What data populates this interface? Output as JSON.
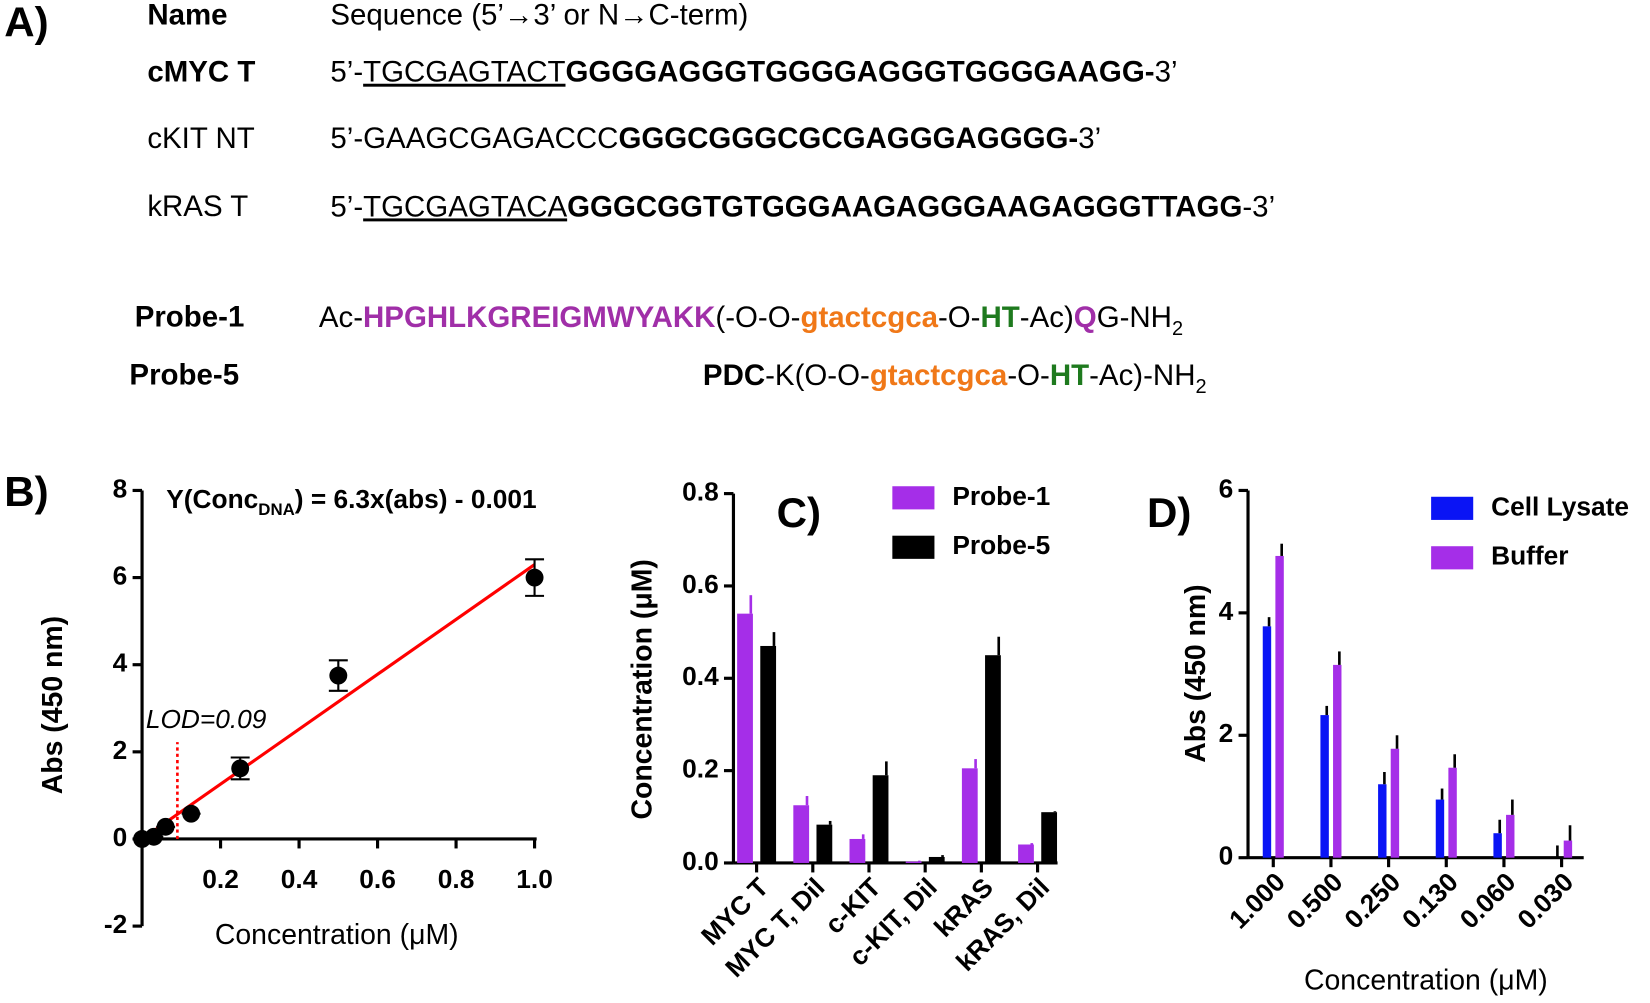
{
  "panel_a": {
    "label": "A)",
    "header": {
      "name": "Name",
      "sequence": "Sequence (5’→3’ or N→C-term)"
    },
    "rows": [
      {
        "name": "cMYC T",
        "name_bold": true,
        "segments": [
          {
            "text": "5’-",
            "style": "plain"
          },
          {
            "text": "TGCGAGTACT",
            "style": "underline"
          },
          {
            "text": "GGGGAGGGTGGGGAGGGTGGGGAAGG-",
            "style": "bold"
          },
          {
            "text": "3’",
            "style": "plain"
          }
        ]
      },
      {
        "name": "cKIT NT",
        "name_bold": false,
        "segments": [
          {
            "text": "5’-GAAGCGAGACCC",
            "style": "plain"
          },
          {
            "text": "GGGCGGGCGCGAGGGAGGGG-",
            "style": "bold"
          },
          {
            "text": "3’",
            "style": "plain"
          }
        ]
      },
      {
        "name": "kRAS T",
        "name_bold": false,
        "segments": [
          {
            "text": "5’-",
            "style": "plain"
          },
          {
            "text": "TGCGAGTACA",
            "style": "underline"
          },
          {
            "text": "GGGCGGTGTGGGAAGAGGGAAGAGGGTTAGG",
            "style": "bold"
          },
          {
            "text": "-3’",
            "style": "plain"
          }
        ]
      },
      {
        "name": "Probe-1",
        "name_bold": true,
        "segments": [
          {
            "text": "Ac-",
            "style": "plain"
          },
          {
            "text": "HPGHLKGREIGMWYAKK",
            "style": "purple"
          },
          {
            "text": "(-O-O-",
            "style": "plain"
          },
          {
            "text": "gtactcgca",
            "style": "orange"
          },
          {
            "text": "-O-",
            "style": "plain"
          },
          {
            "text": "HT",
            "style": "green"
          },
          {
            "text": "-Ac)",
            "style": "plain"
          },
          {
            "text": "Q",
            "style": "purple"
          },
          {
            "text": "G-NH",
            "style": "plain"
          },
          {
            "text": "2",
            "style": "sub"
          }
        ]
      },
      {
        "name": "Probe-5",
        "name_bold": true,
        "segments": [
          {
            "text": "PDC",
            "style": "bold"
          },
          {
            "text": "-K(O-O-",
            "style": "plain"
          },
          {
            "text": "gtactcgca",
            "style": "orange"
          },
          {
            "text": "-O-",
            "style": "plain"
          },
          {
            "text": "HT",
            "style": "green"
          },
          {
            "text": "-Ac)-NH",
            "style": "plain"
          },
          {
            "text": "2",
            "style": "sub"
          }
        ]
      }
    ]
  },
  "chart_data": [
    {
      "type": "scatter",
      "panel_label": "B)",
      "xlabel": "Concentration (μM)",
      "ylabel": "Abs (450 nm)",
      "x": [
        0,
        0.03,
        0.06,
        0.125,
        0.25,
        0.5,
        1
      ],
      "values": [
        0,
        0.05,
        0.28,
        0.58,
        1.62,
        3.75,
        6.0
      ],
      "errors": [
        0,
        0,
        0,
        0,
        0.25,
        0.35,
        0.42
      ],
      "color": "#000000",
      "fit": {
        "color": "#ff0000",
        "x": [
          0,
          1
        ],
        "values": [
          -0.001,
          6.299
        ]
      },
      "equation": {
        "color": "#ff0000",
        "parts": [
          "Y(Conc",
          "DNA",
          ") = 6.3x(abs) - 0.001"
        ]
      },
      "lod": {
        "label": "LOD=0.09",
        "value": 0.09,
        "color": "#ff0000"
      },
      "xlim": [
        0,
        1
      ],
      "ylim": [
        -2,
        8
      ],
      "xticks": [
        0.2,
        0.4,
        0.6,
        0.8,
        {
          "value": 1,
          "label": "1.0"
        }
      ],
      "yticks": [
        -2,
        0,
        2,
        4,
        6,
        8
      ]
    },
    {
      "type": "bar",
      "panel_label": "C)",
      "ylabel": "Concentration (μM)",
      "categories": [
        "MYC T",
        "MYC T, Dil",
        "c-KIT",
        "c-KIT, Dil",
        "kRAS",
        "kRAS, Dil"
      ],
      "series": [
        {
          "name": "Probe-1",
          "color": "#a52ee8",
          "values": [
            0.54,
            0.125,
            0.052,
            0.003,
            0.205,
            0.04
          ],
          "errors": [
            0.04,
            0.02,
            0.01,
            0.002,
            0.02,
            0.003
          ]
        },
        {
          "name": "Probe-5",
          "color": "#000000",
          "values": [
            0.47,
            0.083,
            0.19,
            0.013,
            0.45,
            0.11
          ],
          "errors": [
            0.03,
            0.008,
            0.03,
            0.004,
            0.04,
            0.002
          ]
        }
      ],
      "ylim": [
        0,
        0.8
      ],
      "yticks": [
        {
          "value": 0,
          "label": "0.0"
        },
        0.2,
        0.4,
        0.6,
        0.8
      ],
      "legend": "top-right"
    },
    {
      "type": "bar",
      "panel_label": "D)",
      "xlabel": "Concentration (μM)",
      "ylabel": "Abs (450 nm)",
      "categories": [
        "1.000",
        "0.500",
        "0.250",
        "0.130",
        "0.060",
        "0.030"
      ],
      "series": [
        {
          "name": "Cell Lysate",
          "color": "#0a14f5",
          "values": [
            3.78,
            2.33,
            1.2,
            0.95,
            0.4,
            0
          ],
          "errors": [
            0.15,
            0.15,
            0.2,
            0.18,
            0.22,
            0.2
          ]
        },
        {
          "name": "Buffer",
          "color": "#a52ee8",
          "values": [
            4.93,
            3.15,
            1.78,
            1.47,
            0.7,
            0.28
          ],
          "errors": [
            0.2,
            0.22,
            0.22,
            0.22,
            0.25,
            0.25
          ]
        }
      ],
      "ylim": [
        0,
        6
      ],
      "yticks": [
        0,
        2,
        4,
        6
      ],
      "legend": "top-right"
    }
  ]
}
